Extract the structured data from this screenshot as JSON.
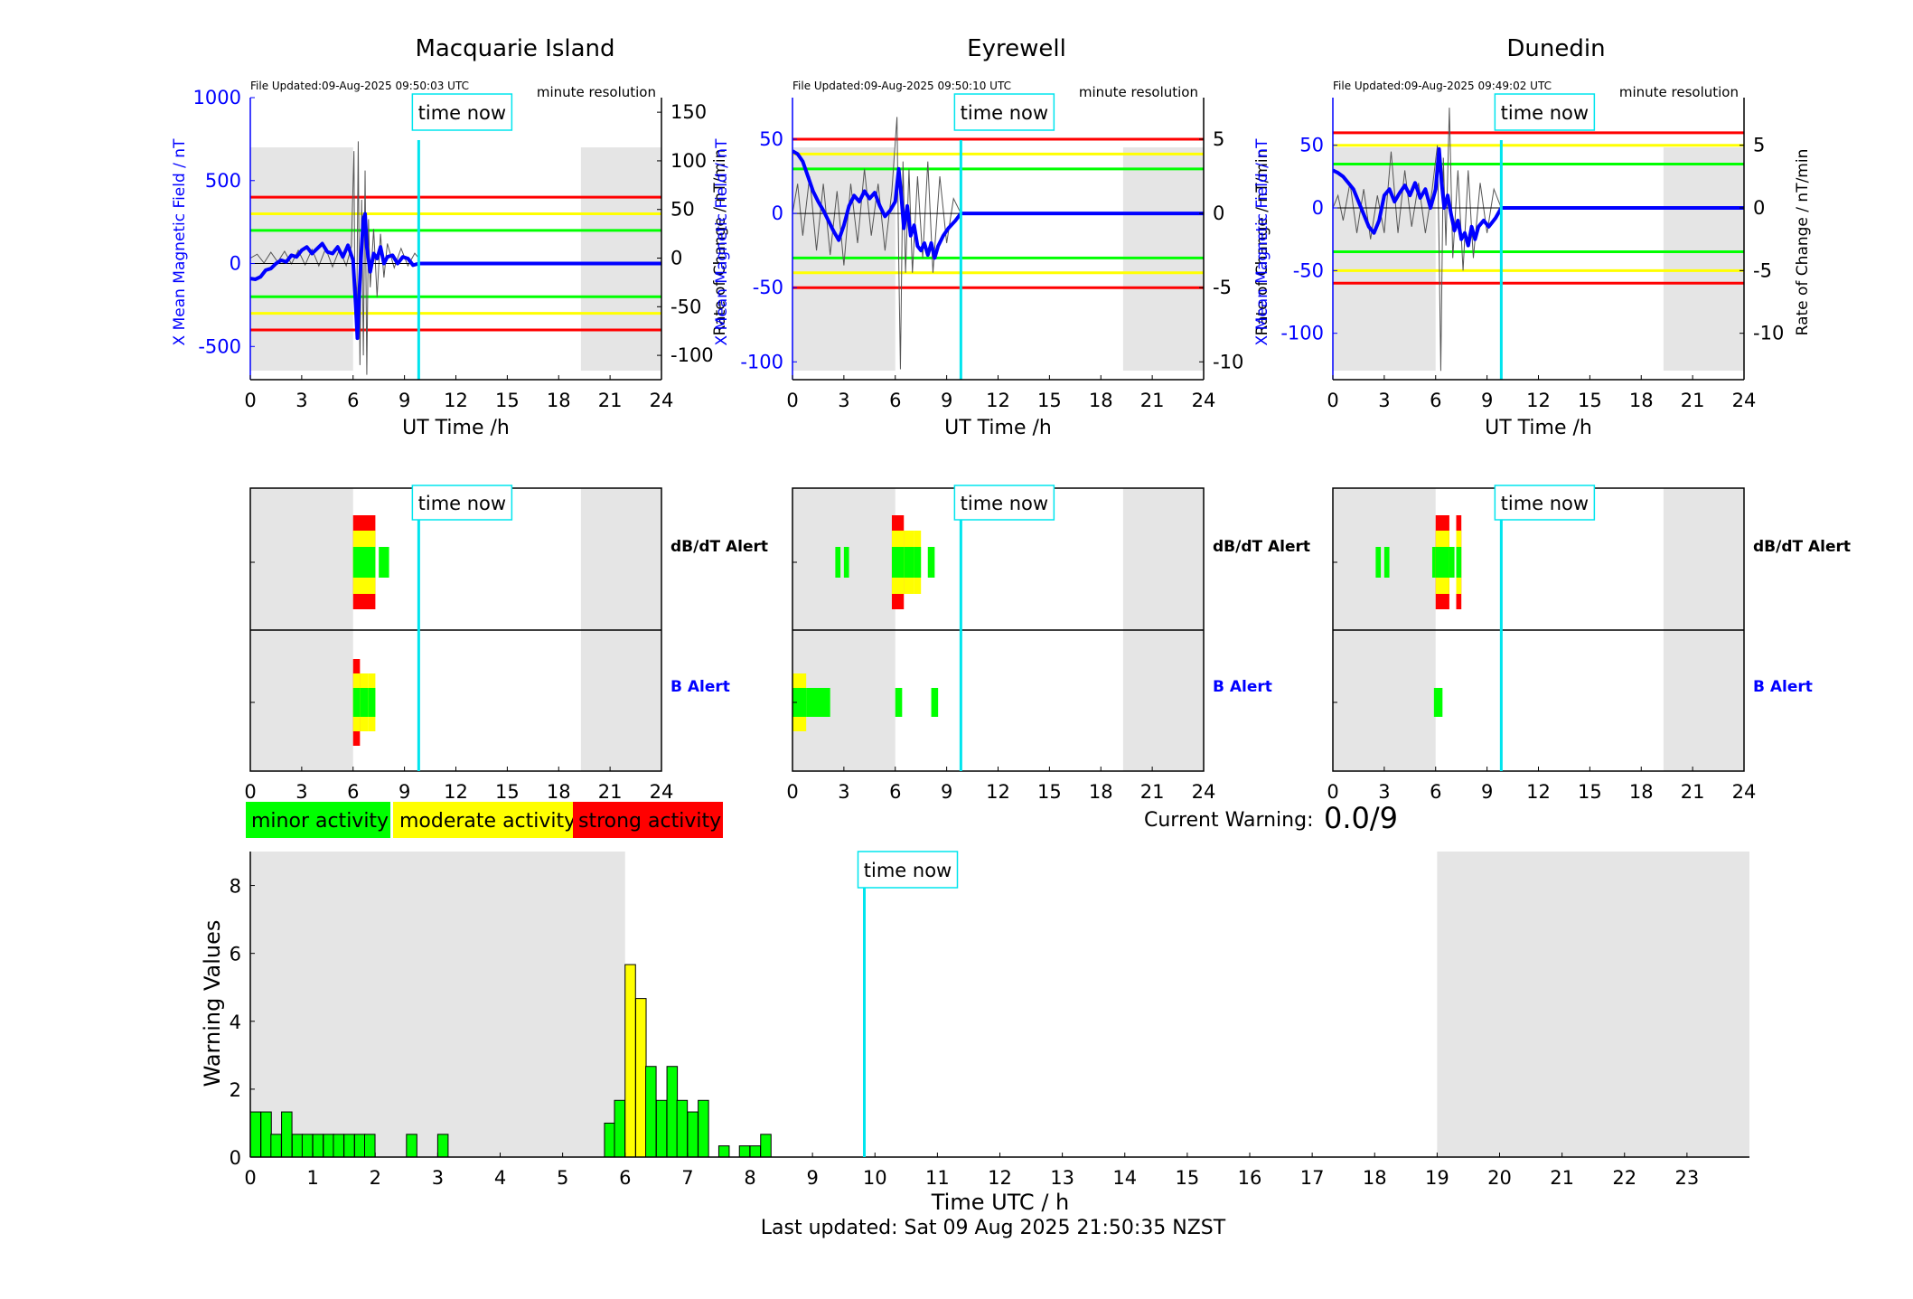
{
  "colors": {
    "blue": "#0000ff",
    "cyan": "#00e5ee",
    "red": "#ff0000",
    "yellow": "#ffff00",
    "green": "#00ff00",
    "grey": "#e5e5e5",
    "black": "#000000"
  },
  "labels": {
    "time_now": "time now",
    "file_updated_prefix": "File Updated:",
    "minute_resolution": "minute resolution",
    "ut_time": "UT Time /h",
    "dbdt_alert": "dB/dT Alert",
    "b_alert": "B Alert",
    "current_warning_label": "Current Warning:",
    "current_warning_value": "0.0/9",
    "warning_values": "Warning Values",
    "time_utc": "Time UTC / h",
    "last_updated": "Last updated: Sat 09 Aug 2025 21:50:35 NZST",
    "legend_minor": "minor activity",
    "legend_moderate": "moderate activity",
    "legend_strong": "strong activity",
    "left_axis_label": "X Mean Magnetic Field / nT",
    "right_axis_label": "Rate of Change / nT/min"
  },
  "chart_data": [
    {
      "type": "line",
      "title": "Macquarie Island",
      "file_updated": "09-Aug-2025 09:50:03 UTC",
      "now_h": 9.83,
      "night": [
        [
          0,
          6
        ],
        [
          19.3,
          24
        ]
      ],
      "xlim": [
        0,
        24
      ],
      "xticks": [
        0,
        3,
        6,
        9,
        12,
        15,
        18,
        21,
        24
      ],
      "ylim": [
        -700,
        1000
      ],
      "yticks": [
        1000,
        500,
        0,
        -500
      ],
      "y2lim": [
        -125,
        165
      ],
      "y2ticks": [
        150,
        100,
        50,
        0,
        -50,
        -100
      ],
      "thresholds": [
        400,
        300,
        200
      ],
      "field_series": [
        [
          0,
          -90
        ],
        [
          0.3,
          -95
        ],
        [
          0.6,
          -80
        ],
        [
          0.9,
          -40
        ],
        [
          1.2,
          -30
        ],
        [
          1.5,
          0
        ],
        [
          1.8,
          20
        ],
        [
          2.1,
          10
        ],
        [
          2.4,
          50
        ],
        [
          2.7,
          40
        ],
        [
          3.0,
          80
        ],
        [
          3.3,
          100
        ],
        [
          3.6,
          60
        ],
        [
          3.9,
          90
        ],
        [
          4.2,
          120
        ],
        [
          4.5,
          70
        ],
        [
          4.8,
          60
        ],
        [
          5.1,
          100
        ],
        [
          5.4,
          40
        ],
        [
          5.7,
          110
        ],
        [
          6.0,
          20
        ],
        [
          6.15,
          -250
        ],
        [
          6.25,
          -450
        ],
        [
          6.35,
          -200
        ],
        [
          6.5,
          100
        ],
        [
          6.6,
          270
        ],
        [
          6.7,
          300
        ],
        [
          6.8,
          100
        ],
        [
          7.0,
          -50
        ],
        [
          7.2,
          60
        ],
        [
          7.4,
          30
        ],
        [
          7.6,
          100
        ],
        [
          7.8,
          0
        ],
        [
          8.0,
          40
        ],
        [
          8.3,
          50
        ],
        [
          8.6,
          0
        ],
        [
          8.9,
          40
        ],
        [
          9.2,
          30
        ],
        [
          9.5,
          -10
        ],
        [
          9.83,
          0
        ],
        [
          24,
          0
        ]
      ],
      "rate_series": [
        [
          0,
          0
        ],
        [
          0.4,
          4
        ],
        [
          0.8,
          -5
        ],
        [
          1.2,
          6
        ],
        [
          1.6,
          -4
        ],
        [
          2.0,
          7
        ],
        [
          2.4,
          -6
        ],
        [
          2.8,
          8
        ],
        [
          3.2,
          -7
        ],
        [
          3.6,
          9
        ],
        [
          4.0,
          -8
        ],
        [
          4.4,
          10
        ],
        [
          4.8,
          -9
        ],
        [
          5.2,
          9
        ],
        [
          5.6,
          -8
        ],
        [
          5.9,
          12
        ],
        [
          6.05,
          110
        ],
        [
          6.1,
          -30
        ],
        [
          6.2,
          -80
        ],
        [
          6.3,
          120
        ],
        [
          6.4,
          -110
        ],
        [
          6.5,
          60
        ],
        [
          6.6,
          -100
        ],
        [
          6.7,
          90
        ],
        [
          6.8,
          -120
        ],
        [
          6.9,
          40
        ],
        [
          7.0,
          -30
        ],
        [
          7.2,
          30
        ],
        [
          7.4,
          -40
        ],
        [
          7.6,
          25
        ],
        [
          7.8,
          -20
        ],
        [
          8.0,
          15
        ],
        [
          8.4,
          -10
        ],
        [
          8.8,
          10
        ],
        [
          9.2,
          -8
        ],
        [
          9.6,
          5
        ],
        [
          9.83,
          0
        ]
      ]
    },
    {
      "type": "line",
      "title": "Eyrewell",
      "file_updated": "09-Aug-2025 09:50:10 UTC",
      "now_h": 9.83,
      "night": [
        [
          0,
          6
        ],
        [
          19.3,
          24
        ]
      ],
      "xlim": [
        0,
        24
      ],
      "xticks": [
        0,
        3,
        6,
        9,
        12,
        15,
        18,
        21,
        24
      ],
      "ylim": [
        -112,
        78
      ],
      "yticks": [
        50,
        0,
        -50,
        -100
      ],
      "y2lim": [
        -11.2,
        7.8
      ],
      "y2ticks": [
        5,
        0,
        -5,
        -10
      ],
      "thresholds": [
        50,
        40,
        30
      ],
      "field_series": [
        [
          0,
          42
        ],
        [
          0.3,
          40
        ],
        [
          0.6,
          35
        ],
        [
          0.9,
          25
        ],
        [
          1.2,
          15
        ],
        [
          1.5,
          8
        ],
        [
          1.8,
          2
        ],
        [
          2.1,
          -5
        ],
        [
          2.4,
          -12
        ],
        [
          2.7,
          -18
        ],
        [
          3.0,
          -8
        ],
        [
          3.3,
          5
        ],
        [
          3.6,
          12
        ],
        [
          3.9,
          8
        ],
        [
          4.2,
          15
        ],
        [
          4.5,
          10
        ],
        [
          4.8,
          14
        ],
        [
          5.1,
          5
        ],
        [
          5.4,
          -2
        ],
        [
          5.7,
          2
        ],
        [
          6.0,
          8
        ],
        [
          6.2,
          30
        ],
        [
          6.35,
          12
        ],
        [
          6.5,
          -10
        ],
        [
          6.7,
          5
        ],
        [
          6.9,
          -15
        ],
        [
          7.1,
          -8
        ],
        [
          7.3,
          -22
        ],
        [
          7.5,
          -25
        ],
        [
          7.7,
          -20
        ],
        [
          7.9,
          -28
        ],
        [
          8.1,
          -20
        ],
        [
          8.3,
          -30
        ],
        [
          8.5,
          -22
        ],
        [
          8.8,
          -15
        ],
        [
          9.1,
          -10
        ],
        [
          9.5,
          -5
        ],
        [
          9.83,
          0
        ],
        [
          24,
          0
        ]
      ],
      "rate_series": [
        [
          0,
          0
        ],
        [
          0.3,
          2
        ],
        [
          0.6,
          -1.5
        ],
        [
          1.0,
          2.5
        ],
        [
          1.4,
          -2.5
        ],
        [
          1.8,
          2
        ],
        [
          2.2,
          -2.8
        ],
        [
          2.6,
          1.5
        ],
        [
          3.0,
          -3.5
        ],
        [
          3.4,
          2
        ],
        [
          3.8,
          -2
        ],
        [
          4.2,
          3
        ],
        [
          4.6,
          -1.5
        ],
        [
          5.0,
          2
        ],
        [
          5.4,
          -2.5
        ],
        [
          5.8,
          1.5
        ],
        [
          6.1,
          6.5
        ],
        [
          6.2,
          -3
        ],
        [
          6.3,
          -10.5
        ],
        [
          6.45,
          3.5
        ],
        [
          6.6,
          -4
        ],
        [
          6.8,
          3
        ],
        [
          7.0,
          -4
        ],
        [
          7.3,
          2.5
        ],
        [
          7.6,
          -3
        ],
        [
          7.9,
          3.5
        ],
        [
          8.2,
          -4
        ],
        [
          8.6,
          2.5
        ],
        [
          9.0,
          -2
        ],
        [
          9.4,
          1
        ],
        [
          9.83,
          0
        ]
      ]
    },
    {
      "type": "line",
      "title": "Dunedin",
      "file_updated": "09-Aug-2025 09:49:02 UTC",
      "now_h": 9.83,
      "night": [
        [
          0,
          6
        ],
        [
          19.3,
          24
        ]
      ],
      "xlim": [
        0,
        24
      ],
      "xticks": [
        0,
        3,
        6,
        9,
        12,
        15,
        18,
        21,
        24
      ],
      "ylim": [
        -137,
        88
      ],
      "yticks": [
        50,
        0,
        -50,
        -100
      ],
      "y2lim": [
        -13.7,
        8.8
      ],
      "y2ticks": [
        5,
        0,
        -5,
        -10
      ],
      "thresholds": [
        60,
        50,
        35
      ],
      "field_series": [
        [
          0,
          30
        ],
        [
          0.3,
          28
        ],
        [
          0.6,
          25
        ],
        [
          0.9,
          20
        ],
        [
          1.2,
          15
        ],
        [
          1.5,
          5
        ],
        [
          1.8,
          -5
        ],
        [
          2.1,
          -15
        ],
        [
          2.4,
          -20
        ],
        [
          2.7,
          -10
        ],
        [
          3.0,
          10
        ],
        [
          3.3,
          15
        ],
        [
          3.6,
          5
        ],
        [
          3.9,
          12
        ],
        [
          4.2,
          18
        ],
        [
          4.5,
          10
        ],
        [
          4.8,
          20
        ],
        [
          5.1,
          8
        ],
        [
          5.4,
          15
        ],
        [
          5.7,
          0
        ],
        [
          6.0,
          15
        ],
        [
          6.2,
          47
        ],
        [
          6.35,
          20
        ],
        [
          6.5,
          0
        ],
        [
          6.7,
          10
        ],
        [
          6.9,
          -5
        ],
        [
          7.1,
          -18
        ],
        [
          7.3,
          -10
        ],
        [
          7.5,
          -25
        ],
        [
          7.7,
          -20
        ],
        [
          7.9,
          -30
        ],
        [
          8.1,
          -15
        ],
        [
          8.3,
          -25
        ],
        [
          8.5,
          -15
        ],
        [
          8.8,
          -10
        ],
        [
          9.1,
          -15
        ],
        [
          9.5,
          -8
        ],
        [
          9.83,
          0
        ],
        [
          24,
          0
        ]
      ],
      "rate_series": [
        [
          0,
          0
        ],
        [
          0.3,
          1
        ],
        [
          0.6,
          -1
        ],
        [
          1.0,
          2
        ],
        [
          1.4,
          -2
        ],
        [
          1.8,
          1.5
        ],
        [
          2.2,
          -2.5
        ],
        [
          2.6,
          1
        ],
        [
          3.0,
          -2
        ],
        [
          3.4,
          4.5
        ],
        [
          3.8,
          -2
        ],
        [
          4.2,
          3
        ],
        [
          4.6,
          -1.5
        ],
        [
          5.0,
          2
        ],
        [
          5.4,
          -2
        ],
        [
          5.8,
          1.5
        ],
        [
          6.1,
          5
        ],
        [
          6.2,
          -3
        ],
        [
          6.3,
          -13
        ],
        [
          6.45,
          4
        ],
        [
          6.6,
          -3
        ],
        [
          6.8,
          8
        ],
        [
          7.0,
          -4
        ],
        [
          7.3,
          3
        ],
        [
          7.6,
          -5
        ],
        [
          7.9,
          3
        ],
        [
          8.2,
          -4
        ],
        [
          8.6,
          2
        ],
        [
          9.0,
          -2
        ],
        [
          9.4,
          1.5
        ],
        [
          9.83,
          0
        ]
      ]
    },
    {
      "type": "heatmap",
      "station": "Macquarie Island",
      "now_h": 9.83,
      "night": [
        [
          0,
          6
        ],
        [
          19.3,
          24
        ]
      ],
      "xticks": [
        0,
        3,
        6,
        9,
        12,
        15,
        18,
        21,
        24
      ],
      "dbdt_blocks": [
        [
          6.0,
          7.3,
          3
        ],
        [
          7.5,
          8.1,
          1
        ]
      ],
      "b_blocks": [
        [
          6.0,
          6.4,
          3
        ],
        [
          6.4,
          6.9,
          2
        ],
        [
          6.9,
          7.3,
          2
        ]
      ]
    },
    {
      "type": "heatmap",
      "station": "Eyrewell",
      "now_h": 9.83,
      "night": [
        [
          0,
          6
        ],
        [
          19.3,
          24
        ]
      ],
      "xticks": [
        0,
        3,
        6,
        9,
        12,
        15,
        18,
        21,
        24
      ],
      "dbdt_blocks": [
        [
          2.5,
          2.8,
          1
        ],
        [
          3.0,
          3.3,
          1
        ],
        [
          5.8,
          6.5,
          3
        ],
        [
          6.5,
          7.1,
          2
        ],
        [
          7.1,
          7.5,
          2
        ],
        [
          7.9,
          8.3,
          1
        ]
      ],
      "b_blocks": [
        [
          0,
          0.8,
          2
        ],
        [
          0.8,
          2.2,
          1
        ],
        [
          6.0,
          6.4,
          1
        ],
        [
          8.1,
          8.5,
          1
        ]
      ]
    },
    {
      "type": "heatmap",
      "station": "Dunedin",
      "now_h": 9.83,
      "night": [
        [
          0,
          6
        ],
        [
          19.3,
          24
        ]
      ],
      "xticks": [
        0,
        3,
        6,
        9,
        12,
        15,
        18,
        21,
        24
      ],
      "dbdt_blocks": [
        [
          2.5,
          2.8,
          1
        ],
        [
          3.0,
          3.3,
          1
        ],
        [
          5.8,
          6.4,
          1
        ],
        [
          6.0,
          6.8,
          3
        ],
        [
          6.8,
          7.1,
          1
        ],
        [
          7.2,
          7.5,
          3
        ]
      ],
      "b_blocks": [
        [
          5.9,
          6.4,
          1
        ]
      ]
    },
    {
      "type": "bar",
      "ylabel": "Warning Values",
      "xlabel": "Time UTC / h",
      "xlim": [
        0,
        24
      ],
      "xticks": [
        0,
        1,
        2,
        3,
        4,
        5,
        6,
        7,
        8,
        9,
        10,
        11,
        12,
        13,
        14,
        15,
        16,
        17,
        18,
        19,
        20,
        21,
        22,
        23
      ],
      "ylim": [
        0,
        9
      ],
      "yticks": [
        0,
        2,
        4,
        6,
        8
      ],
      "now_h": 9.83,
      "night": [
        [
          0,
          6
        ],
        [
          19,
          24
        ]
      ],
      "bar_width_h": 0.1667,
      "bars": [
        [
          0.0,
          1.33
        ],
        [
          0.17,
          1.33
        ],
        [
          0.33,
          0.67
        ],
        [
          0.5,
          1.33
        ],
        [
          0.67,
          0.67
        ],
        [
          0.83,
          0.67
        ],
        [
          1.0,
          0.67
        ],
        [
          1.17,
          0.67
        ],
        [
          1.33,
          0.67
        ],
        [
          1.5,
          0.67
        ],
        [
          1.67,
          0.67
        ],
        [
          1.83,
          0.67
        ],
        [
          2.5,
          0.67
        ],
        [
          3.0,
          0.67
        ],
        [
          5.67,
          1.0
        ],
        [
          5.83,
          1.67
        ],
        [
          6.0,
          5.67
        ],
        [
          6.17,
          4.67
        ],
        [
          6.33,
          2.67
        ],
        [
          6.5,
          1.67
        ],
        [
          6.67,
          2.67
        ],
        [
          6.83,
          1.67
        ],
        [
          7.0,
          1.33
        ],
        [
          7.17,
          1.67
        ],
        [
          7.5,
          0.33
        ],
        [
          7.83,
          0.33
        ],
        [
          8.0,
          0.33
        ],
        [
          8.17,
          0.67
        ]
      ]
    }
  ]
}
